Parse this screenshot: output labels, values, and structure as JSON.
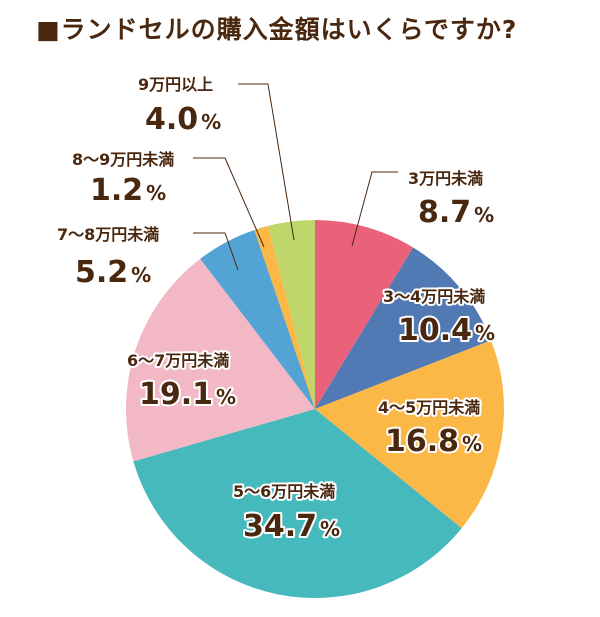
{
  "chart_data": {
    "type": "pie",
    "title": "■ランドセルの購入金額はいくらですか?",
    "unit": "%",
    "slices": [
      {
        "label": "3万円未満",
        "value": 8.7,
        "display": "8.7",
        "color": "#e9627a"
      },
      {
        "label": "3〜4万円未満",
        "value": 10.4,
        "display": "10.4",
        "color": "#5179b4"
      },
      {
        "label": "4〜5万円未満",
        "value": 16.8,
        "display": "16.8",
        "color": "#fbb847"
      },
      {
        "label": "5〜6万円未満",
        "value": 34.7,
        "display": "34.7",
        "color": "#46b9bd"
      },
      {
        "label": "6〜7万円未満",
        "value": 19.1,
        "display": "19.1",
        "color": "#f2b8c5"
      },
      {
        "label": "7〜8万円未満",
        "value": 5.2,
        "display": "5.2",
        "color": "#53a3d4"
      },
      {
        "label": "8〜9万円未満",
        "value": 1.2,
        "display": "1.2",
        "color": "#fbb847"
      },
      {
        "label": "9万円以上",
        "value": 4.0,
        "display": "4.0",
        "color": "#bfd66b"
      }
    ],
    "start": "12 o'clock",
    "direction": "clockwise",
    "text_color": "#4a2810"
  }
}
